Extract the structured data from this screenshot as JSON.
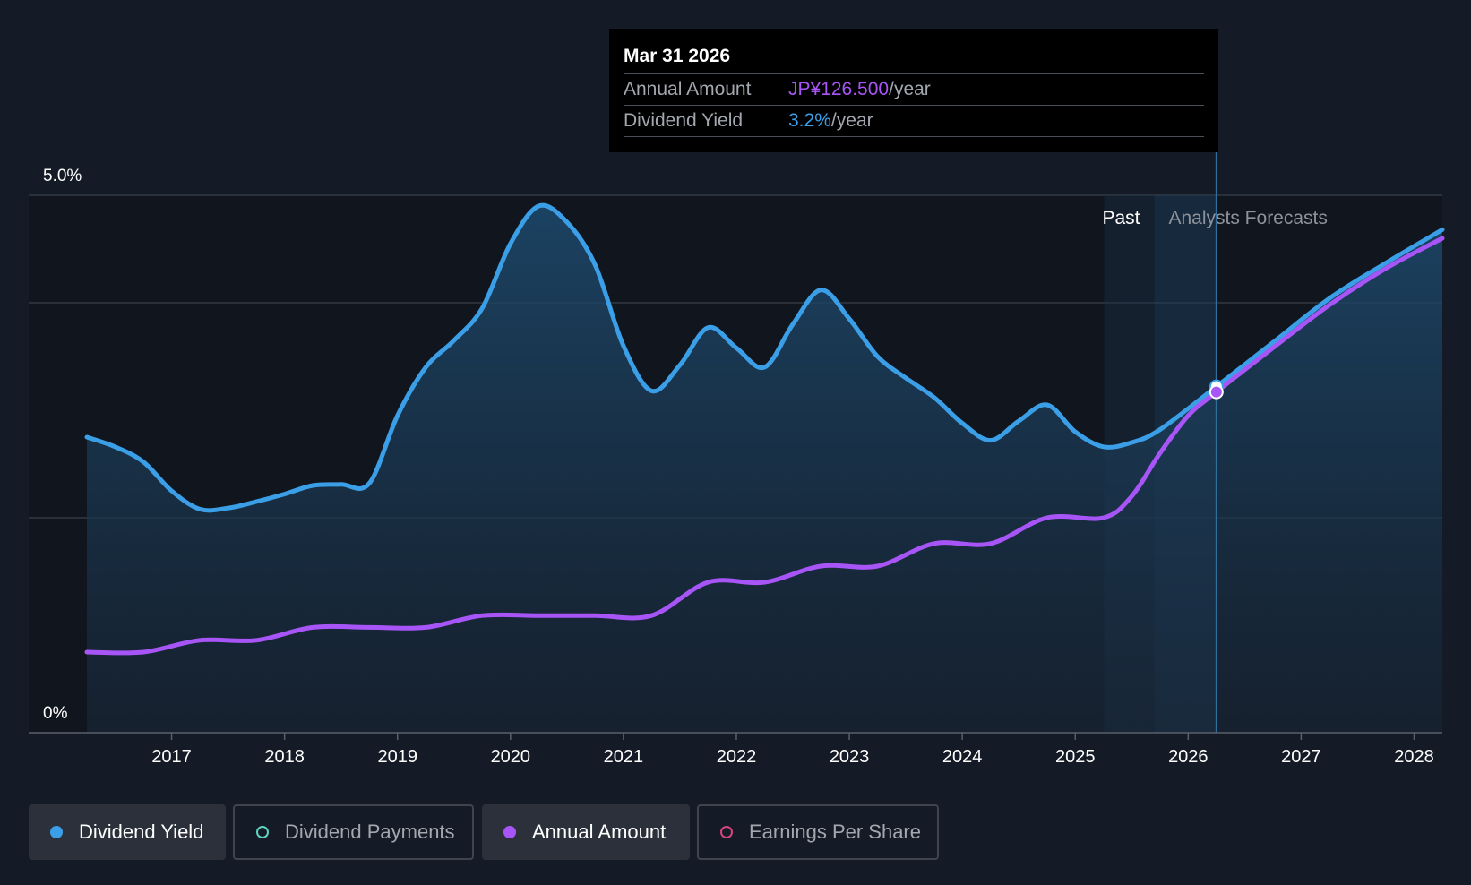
{
  "tooltip": {
    "date": "Mar 31 2026",
    "annual_amount_label": "Annual Amount",
    "annual_amount_value": "JP¥126.500",
    "annual_amount_unit": "/year",
    "dividend_yield_label": "Dividend Yield",
    "dividend_yield_value": "3.2%",
    "dividend_yield_unit": "/year"
  },
  "region_labels": {
    "past": "Past",
    "forecast": "Analysts Forecasts"
  },
  "legend": [
    {
      "label": "Dividend Yield",
      "color": "#3b9fe8",
      "active": true,
      "filled": true
    },
    {
      "label": "Dividend Payments",
      "color": "#5fd3c2",
      "active": false,
      "filled": false
    },
    {
      "label": "Annual Amount",
      "color": "#a855f7",
      "active": true,
      "filled": true
    },
    {
      "label": "Earnings Per Share",
      "color": "#d6457c",
      "active": false,
      "filled": false
    }
  ],
  "colors": {
    "background": "#151b26",
    "yield_line": "#3b9fe8",
    "annual_line": "#a855f7"
  },
  "chart_data": {
    "type": "line",
    "y_tick_labels": [
      "5.0%",
      "0%"
    ],
    "ylim": [
      0,
      5
    ],
    "xlim": [
      2016.25,
      2028.25
    ],
    "x_ticks": [
      2017,
      2018,
      2019,
      2020,
      2021,
      2022,
      2023,
      2024,
      2025,
      2026,
      2027,
      2028
    ],
    "x_tick_labels": [
      "2017",
      "2018",
      "2019",
      "2020",
      "2021",
      "2022",
      "2023",
      "2024",
      "2025",
      "2026",
      "2027",
      "2028"
    ],
    "grid": true,
    "past_forecast_divider": 2025.7,
    "highlight_x": 2026.25,
    "series": [
      {
        "name": "Dividend Yield",
        "unit": "%",
        "area": true,
        "points": [
          [
            2016.25,
            2.75
          ],
          [
            2016.5,
            2.66
          ],
          [
            2016.75,
            2.52
          ],
          [
            2017.0,
            2.25
          ],
          [
            2017.25,
            2.08
          ],
          [
            2017.5,
            2.09
          ],
          [
            2017.75,
            2.15
          ],
          [
            2018.0,
            2.22
          ],
          [
            2018.25,
            2.3
          ],
          [
            2018.5,
            2.31
          ],
          [
            2018.75,
            2.32
          ],
          [
            2019.0,
            2.95
          ],
          [
            2019.25,
            3.4
          ],
          [
            2019.5,
            3.65
          ],
          [
            2019.75,
            3.95
          ],
          [
            2020.0,
            4.55
          ],
          [
            2020.25,
            4.9
          ],
          [
            2020.5,
            4.75
          ],
          [
            2020.75,
            4.35
          ],
          [
            2021.0,
            3.6
          ],
          [
            2021.25,
            3.18
          ],
          [
            2021.5,
            3.42
          ],
          [
            2021.75,
            3.77
          ],
          [
            2022.0,
            3.58
          ],
          [
            2022.25,
            3.4
          ],
          [
            2022.5,
            3.8
          ],
          [
            2022.75,
            4.12
          ],
          [
            2023.0,
            3.85
          ],
          [
            2023.25,
            3.5
          ],
          [
            2023.5,
            3.3
          ],
          [
            2023.75,
            3.12
          ],
          [
            2024.0,
            2.88
          ],
          [
            2024.25,
            2.72
          ],
          [
            2024.5,
            2.9
          ],
          [
            2024.75,
            3.05
          ],
          [
            2025.0,
            2.8
          ],
          [
            2025.25,
            2.66
          ],
          [
            2025.5,
            2.7
          ],
          [
            2025.75,
            2.82
          ],
          [
            2026.25,
            3.22
          ],
          [
            2026.75,
            3.63
          ],
          [
            2027.25,
            4.04
          ],
          [
            2027.75,
            4.37
          ],
          [
            2028.25,
            4.68
          ]
        ]
      },
      {
        "name": "Annual Amount",
        "area": false,
        "points": [
          [
            2016.25,
            0.75
          ],
          [
            2016.75,
            0.75
          ],
          [
            2017.25,
            0.86
          ],
          [
            2017.75,
            0.86
          ],
          [
            2018.25,
            0.98
          ],
          [
            2018.75,
            0.98
          ],
          [
            2019.25,
            0.98
          ],
          [
            2019.75,
            1.09
          ],
          [
            2020.25,
            1.09
          ],
          [
            2020.75,
            1.09
          ],
          [
            2021.25,
            1.09
          ],
          [
            2021.75,
            1.4
          ],
          [
            2022.25,
            1.4
          ],
          [
            2022.75,
            1.55
          ],
          [
            2023.25,
            1.55
          ],
          [
            2023.75,
            1.76
          ],
          [
            2024.25,
            1.76
          ],
          [
            2024.75,
            2.0
          ],
          [
            2025.25,
            2.0
          ],
          [
            2025.5,
            2.2
          ],
          [
            2025.75,
            2.6
          ],
          [
            2026.0,
            2.95
          ],
          [
            2026.25,
            3.17
          ],
          [
            2026.75,
            3.58
          ],
          [
            2027.25,
            3.98
          ],
          [
            2027.75,
            4.32
          ],
          [
            2028.25,
            4.6
          ]
        ]
      }
    ]
  }
}
